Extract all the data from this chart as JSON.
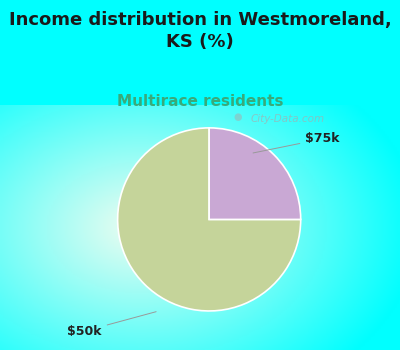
{
  "title": "Income distribution in Westmoreland,\nKS (%)",
  "subtitle": "Multirace residents",
  "subtitle_color": "#3aaa7a",
  "title_fontsize": 13,
  "subtitle_fontsize": 11,
  "background_color": "#00ffff",
  "slices": [
    75.0,
    25.0
  ],
  "slice_colors": [
    "#c5d49a",
    "#c9a8d4"
  ],
  "label_fontsize": 9,
  "watermark": "City-Data.com",
  "start_angle": 90
}
